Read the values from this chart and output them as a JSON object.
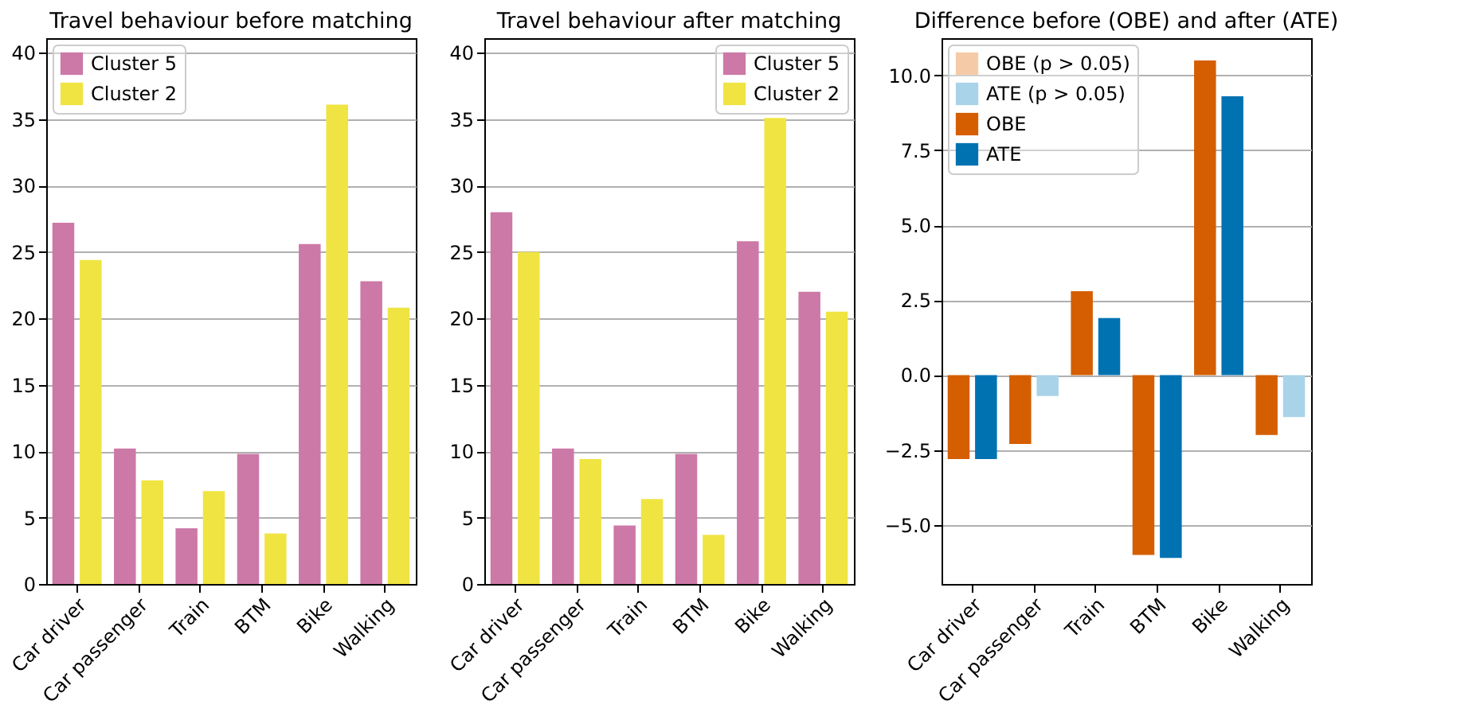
{
  "chart_data": [
    {
      "type": "bar",
      "title": "Travel behaviour before matching",
      "categories": [
        "Car driver",
        "Car passenger",
        "Train",
        "BTM",
        "Bike",
        "Walking"
      ],
      "series": [
        {
          "name": "Cluster 5",
          "color": "#cc79a7",
          "values": [
            27.2,
            10.2,
            4.2,
            9.8,
            25.6,
            22.8
          ]
        },
        {
          "name": "Cluster 2",
          "color": "#f0e442",
          "values": [
            24.4,
            7.8,
            7.0,
            3.8,
            36.1,
            20.8
          ]
        }
      ],
      "ylim": [
        0,
        41.1
      ],
      "yticks": [
        0,
        5,
        10,
        15,
        20,
        25,
        30,
        35,
        40
      ],
      "grid": "y",
      "legend": "top left"
    },
    {
      "type": "bar",
      "title": "Travel behaviour after matching",
      "categories": [
        "Car driver",
        "Car passenger",
        "Train",
        "BTM",
        "Bike",
        "Walking"
      ],
      "series": [
        {
          "name": "Cluster 5",
          "color": "#cc79a7",
          "values": [
            28.0,
            10.2,
            4.4,
            9.8,
            25.8,
            22.0
          ]
        },
        {
          "name": "Cluster 2",
          "color": "#f0e442",
          "values": [
            25.0,
            9.4,
            6.4,
            3.7,
            35.1,
            20.5
          ]
        }
      ],
      "ylim": [
        0,
        41.1
      ],
      "yticks": [
        0,
        5,
        10,
        15,
        20,
        25,
        30,
        35,
        40
      ],
      "grid": "y",
      "legend": "top right"
    },
    {
      "type": "bar",
      "title": "Difference before (OBE) and after (ATE)",
      "categories": [
        "Car driver",
        "Car passenger",
        "Train",
        "BTM",
        "Bike",
        "Walking"
      ],
      "series": [
        {
          "name": "OBE (p > 0.05)",
          "color": "#f5cba7",
          "values": [
            null,
            null,
            null,
            null,
            null,
            null
          ]
        },
        {
          "name": "ATE (p > 0.05)",
          "color": "#a9d3e8",
          "values": [
            null,
            -0.7,
            null,
            null,
            null,
            -1.4
          ]
        },
        {
          "name": "OBE",
          "color": "#d55e00",
          "values": [
            -2.8,
            -2.3,
            2.8,
            -6.0,
            10.5,
            -2.0
          ]
        },
        {
          "name": "ATE",
          "color": "#0072b2",
          "values": [
            -2.8,
            null,
            1.9,
            -6.1,
            9.3,
            null
          ]
        }
      ],
      "ylim": [
        -6.97,
        11.24
      ],
      "yticks": [
        {
          "value": -5,
          "label": "−5.0"
        },
        {
          "value": -2.5,
          "label": "−2.5"
        },
        {
          "value": 0,
          "label": "0.0"
        },
        {
          "value": 2.5,
          "label": "2.5"
        },
        {
          "value": 5,
          "label": "5.0"
        },
        {
          "value": 7.5,
          "label": "7.5"
        },
        {
          "value": 10,
          "label": "10.0"
        }
      ],
      "grid": "y",
      "legend": "top left"
    }
  ]
}
